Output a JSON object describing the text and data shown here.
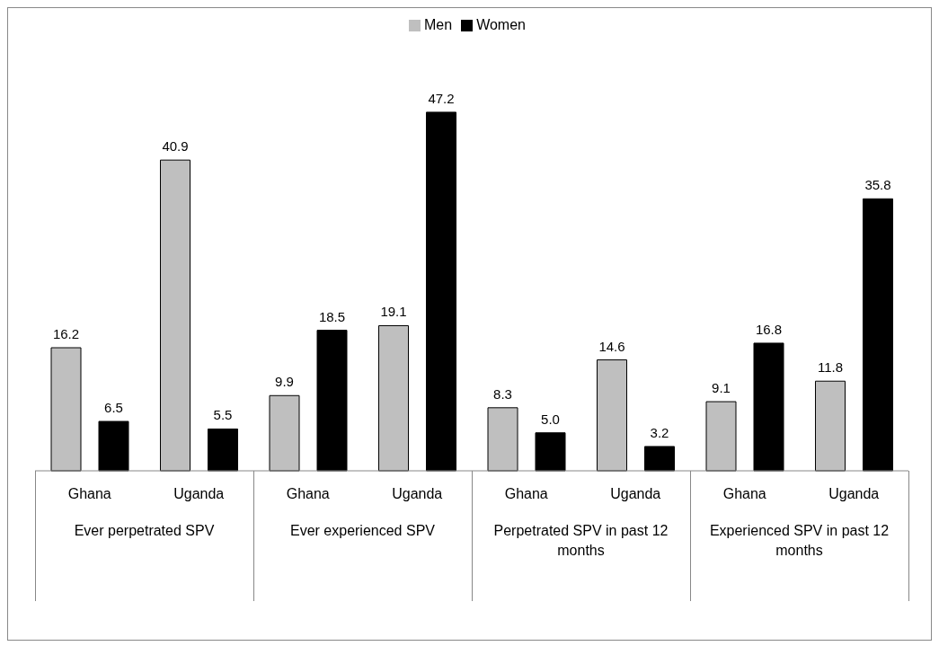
{
  "chart_data": {
    "type": "bar",
    "categories": [
      "Ghana",
      "Uganda",
      "Ghana",
      "Uganda",
      "Ghana",
      "Uganda",
      "Ghana",
      "Uganda"
    ],
    "series": [
      {
        "name": "Men",
        "color": "#bfbfbf",
        "values": [
          16.2,
          40.9,
          9.9,
          19.1,
          8.3,
          14.6,
          9.1,
          11.8
        ],
        "value_labels": [
          "16.2",
          "40.9",
          "9.9",
          "19.1",
          "8.3",
          "14.6",
          "9.1",
          "11.8"
        ]
      },
      {
        "name": "Women",
        "color": "#000000",
        "values": [
          6.5,
          5.5,
          18.5,
          47.2,
          5.0,
          3.2,
          16.8,
          35.8
        ],
        "value_labels": [
          "6.5",
          "5.5",
          "18.5",
          "47.2",
          "5.0",
          "3.2",
          "16.8",
          "35.8"
        ]
      }
    ],
    "annotations": [
      "Ever perpetrated SPV",
      "Ever experienced SPV",
      "Perpetrated SPV in past 12 months",
      "Experienced SPV in past 12 months"
    ],
    "legend": "top",
    "grid": false
  }
}
